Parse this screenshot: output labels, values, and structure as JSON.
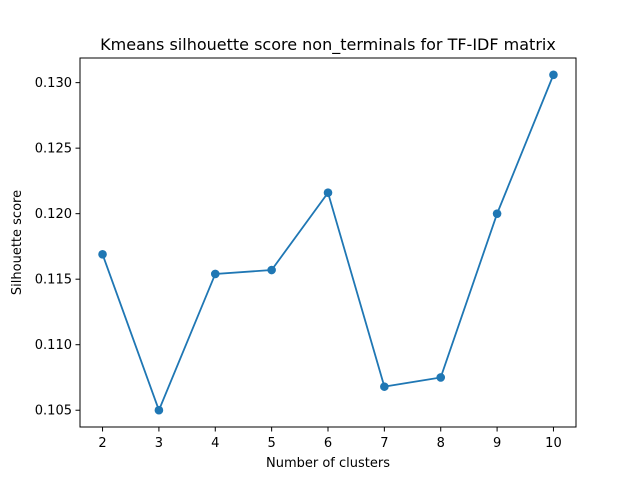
{
  "chart_data": {
    "type": "line",
    "title": "Kmeans silhouette score non_terminals for TF-IDF matrix",
    "xlabel": "Number of clusters",
    "ylabel": "Silhouette score",
    "x": [
      2,
      3,
      4,
      5,
      6,
      7,
      8,
      9,
      10
    ],
    "series": [
      {
        "values": [
          0.1169,
          0.105,
          0.1154,
          0.1157,
          0.1216,
          0.1068,
          0.1075,
          0.12,
          0.1306
        ],
        "color": "#1f77b4",
        "marker": "circle"
      }
    ],
    "xticks": [
      "2",
      "3",
      "4",
      "5",
      "6",
      "7",
      "8",
      "9",
      "10"
    ],
    "xtick_values": [
      2,
      3,
      4,
      5,
      6,
      7,
      8,
      9,
      10
    ],
    "yticks": [
      "0.105",
      "0.110",
      "0.115",
      "0.120",
      "0.125",
      "0.130"
    ],
    "ytick_values": [
      0.105,
      0.11,
      0.115,
      0.12,
      0.125,
      0.13
    ],
    "xlim": [
      1.6,
      10.4
    ],
    "ylim": [
      0.10372,
      0.13188
    ],
    "grid": false,
    "legend": false
  }
}
